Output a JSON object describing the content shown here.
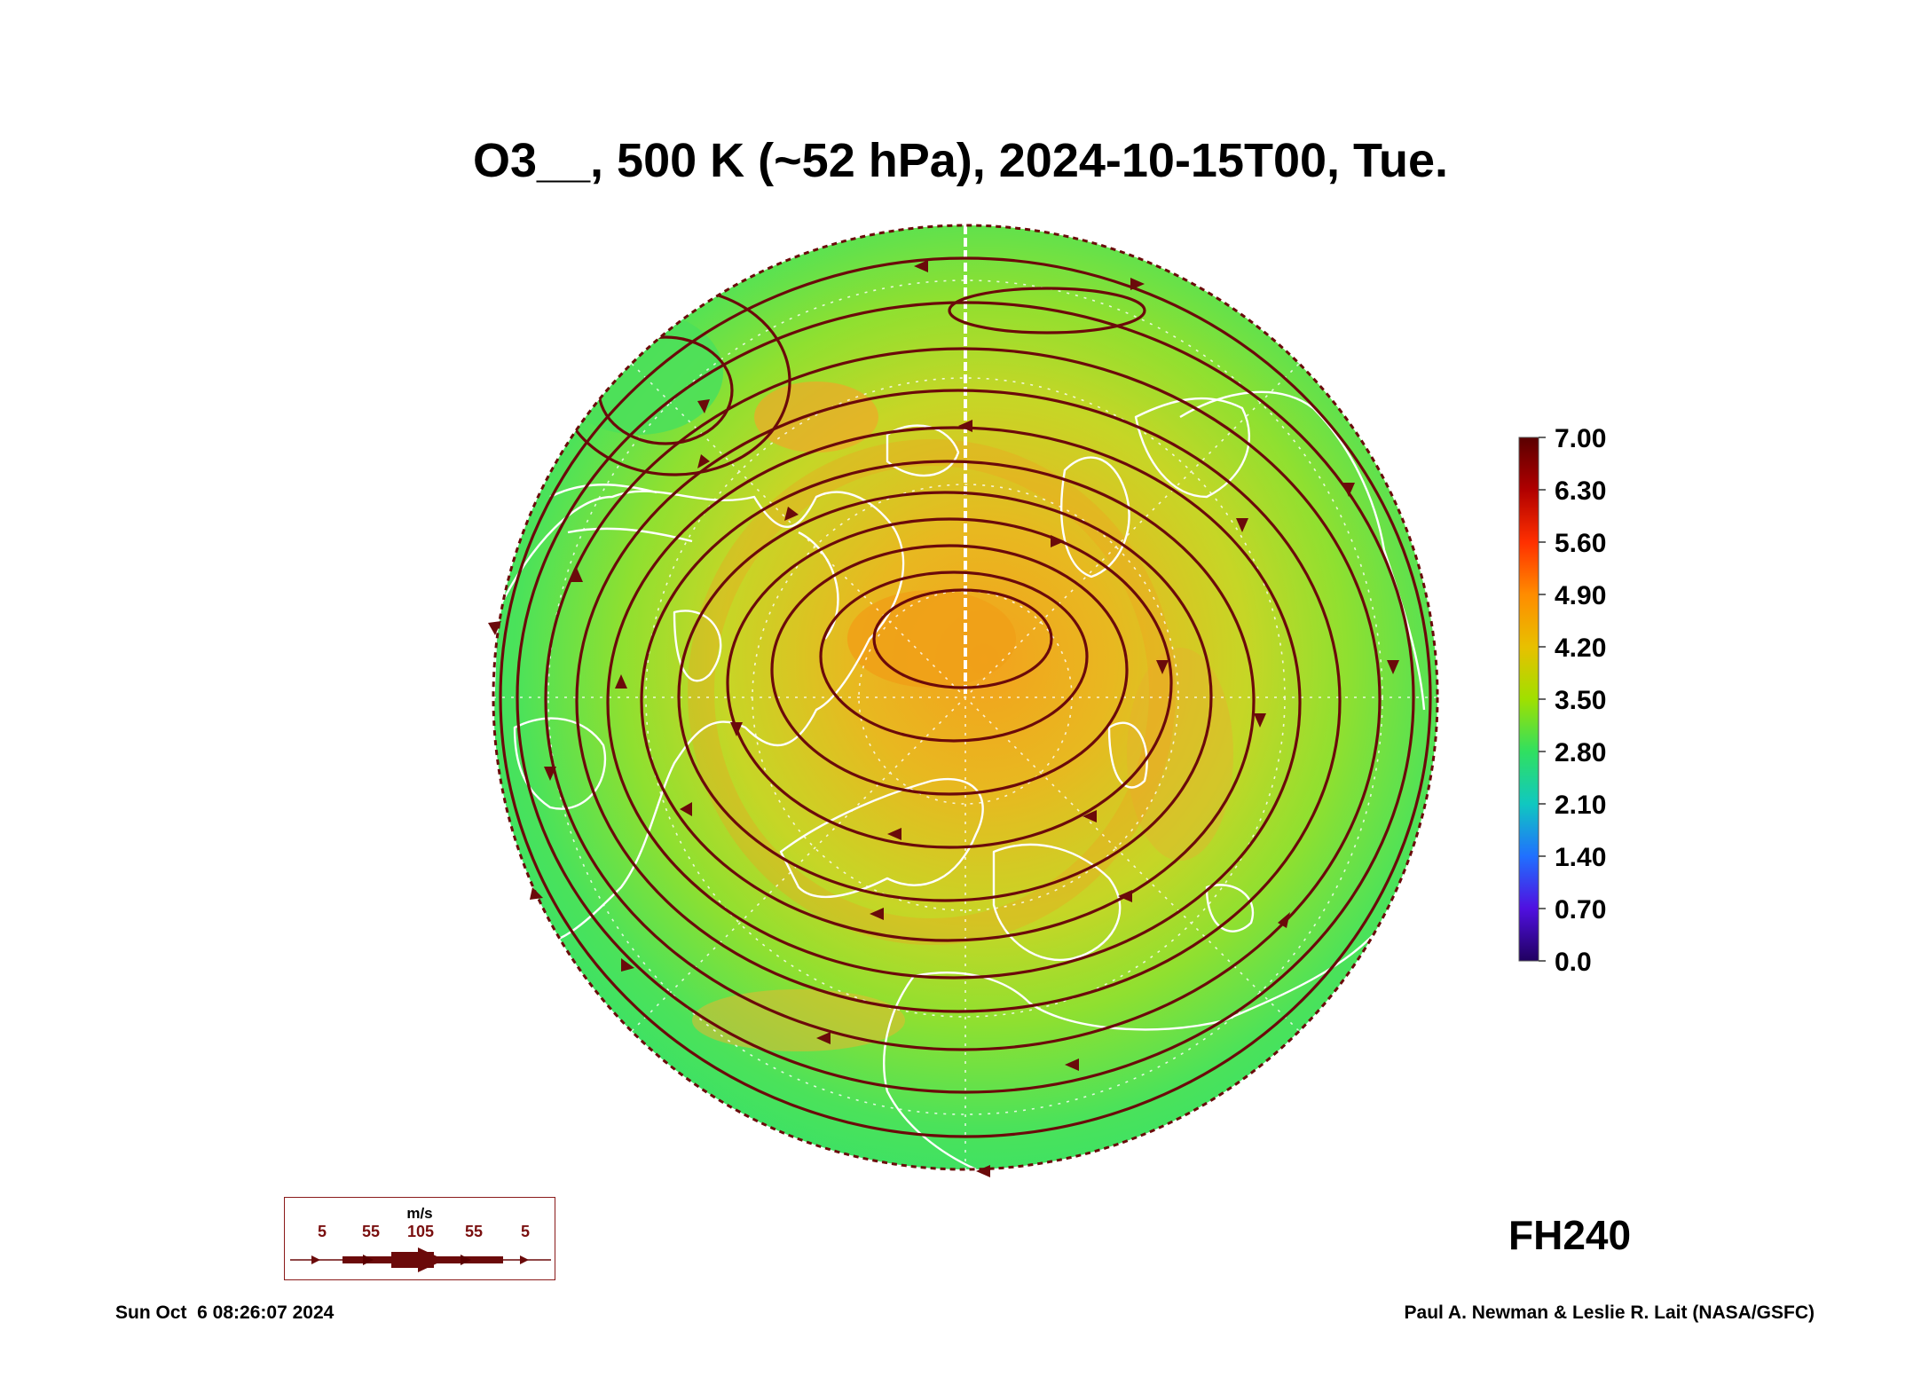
{
  "title": "O3__, 500 K (~52 hPa), 2024-10-15T00, Tue.",
  "colorbar": {
    "labels": [
      "7.00",
      "6.30",
      "5.60",
      "4.90",
      "4.20",
      "3.50",
      "2.80",
      "2.10",
      "1.40",
      "0.70",
      "0.0"
    ],
    "colors": [
      "#5a0000",
      "#c01010",
      "#ff3b00",
      "#ff8c00",
      "#d8c800",
      "#9be000",
      "#30e060",
      "#10c0d0",
      "#2060ff",
      "#4010d0",
      "#200060"
    ]
  },
  "map": {
    "projection": "north-polar-stereographic",
    "background_color": "#32e36a",
    "high_color": "#f2a020",
    "streamline_color": "#6b0a0a",
    "coastline_color": "#ffffff"
  },
  "wind_legend": {
    "unit": "m/s",
    "values": [
      "5",
      "55",
      "105",
      "55",
      "5"
    ]
  },
  "forecast_hour": "FH240",
  "timestamp": "Sun Oct  6 08:26:07 2024",
  "credit": "Paul A. Newman & Leslie R. Lait (NASA/GSFC)"
}
